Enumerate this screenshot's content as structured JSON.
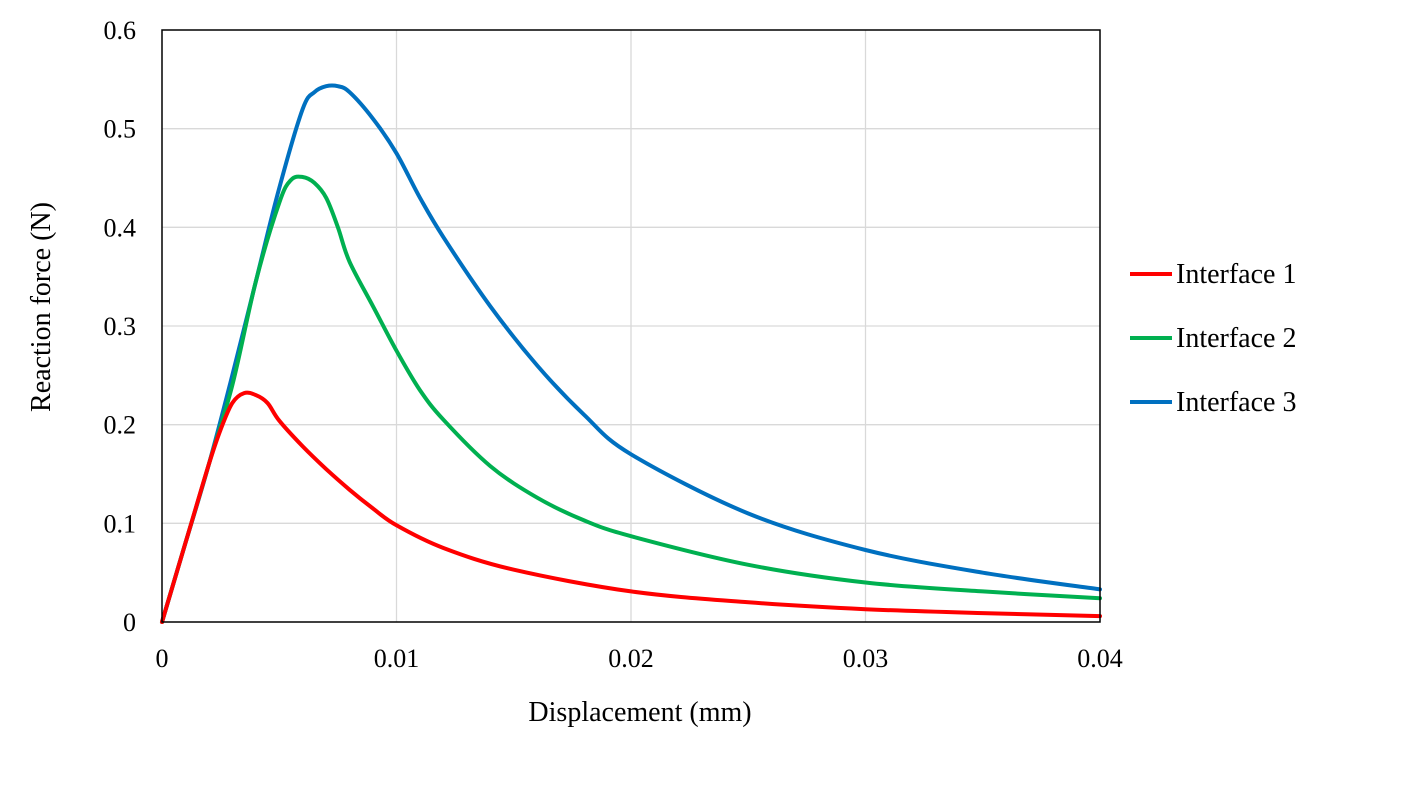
{
  "chart_data": {
    "type": "line",
    "title": "",
    "xlabel": "Displacement (mm)",
    "ylabel": "Reaction force (N)",
    "xlim": [
      0,
      0.04
    ],
    "ylim": [
      0,
      0.6
    ],
    "x_ticks": [
      "0",
      "0.01",
      "0.02",
      "0.03",
      "0.04"
    ],
    "y_ticks": [
      "0",
      "0.1",
      "0.2",
      "0.3",
      "0.4",
      "0.5",
      "0.6"
    ],
    "grid": true,
    "legend_position": "right",
    "series": [
      {
        "name": "Interface 1",
        "color": "#ff0000",
        "x": [
          0,
          0.001,
          0.002,
          0.0025,
          0.003,
          0.0035,
          0.004,
          0.0045,
          0.005,
          0.006,
          0.007,
          0.008,
          0.009,
          0.01,
          0.012,
          0.015,
          0.02,
          0.025,
          0.03,
          0.035,
          0.04
        ],
        "y": [
          0,
          0.08,
          0.16,
          0.195,
          0.222,
          0.232,
          0.23,
          0.222,
          0.204,
          0.178,
          0.155,
          0.134,
          0.115,
          0.098,
          0.075,
          0.053,
          0.031,
          0.02,
          0.013,
          0.009,
          0.006
        ]
      },
      {
        "name": "Interface 2",
        "color": "#00b050",
        "x": [
          0,
          0.001,
          0.002,
          0.003,
          0.004,
          0.005,
          0.0055,
          0.006,
          0.0065,
          0.007,
          0.0075,
          0.008,
          0.009,
          0.01,
          0.011,
          0.012,
          0.014,
          0.016,
          0.018,
          0.02,
          0.025,
          0.03,
          0.035,
          0.04
        ],
        "y": [
          0,
          0.08,
          0.16,
          0.24,
          0.345,
          0.425,
          0.448,
          0.451,
          0.445,
          0.43,
          0.4,
          0.365,
          0.32,
          0.275,
          0.235,
          0.205,
          0.158,
          0.126,
          0.103,
          0.087,
          0.058,
          0.04,
          0.031,
          0.024
        ]
      },
      {
        "name": "Interface 3",
        "color": "#0070c0",
        "x": [
          0,
          0.001,
          0.002,
          0.003,
          0.004,
          0.005,
          0.006,
          0.0065,
          0.007,
          0.0075,
          0.008,
          0.009,
          0.01,
          0.011,
          0.012,
          0.014,
          0.016,
          0.018,
          0.02,
          0.025,
          0.03,
          0.035,
          0.04
        ],
        "y": [
          0,
          0.08,
          0.16,
          0.25,
          0.345,
          0.44,
          0.52,
          0.537,
          0.543,
          0.543,
          0.537,
          0.51,
          0.475,
          0.43,
          0.39,
          0.32,
          0.26,
          0.21,
          0.17,
          0.11,
          0.073,
          0.05,
          0.033
        ]
      }
    ]
  }
}
